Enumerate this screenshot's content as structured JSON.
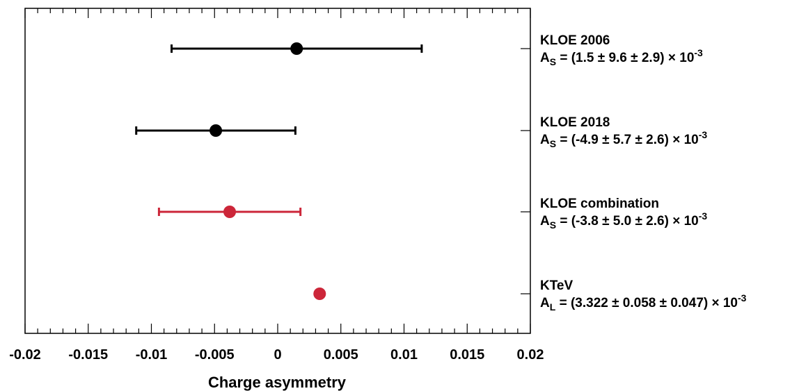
{
  "chart_data": {
    "type": "scatter",
    "orientation": "horizontal-forest",
    "title": "",
    "xlabel": "Charge asymmetry",
    "ylabel": "",
    "xlim": [
      -0.02,
      0.02
    ],
    "x_tick_labels": [
      "-0.02",
      "-0.015",
      "-0.01",
      "-0.005",
      "0",
      "0.005",
      "0.01",
      "0.015",
      "0.02"
    ],
    "x_tick_values": [
      -0.02,
      -0.015,
      -0.01,
      -0.005,
      0,
      0.005,
      0.01,
      0.015,
      0.02
    ],
    "grid": false,
    "legend": "right",
    "points": [
      {
        "label": "KLOE 2006",
        "symbol": "A",
        "subscript": "S",
        "value_text": " = (1.5 ± 9.6 ± 2.9) × 10",
        "exponent": "-3",
        "x": 0.0015,
        "xerr_low": 0.0099,
        "xerr_high": 0.0099,
        "color": "#000000"
      },
      {
        "label": "KLOE 2018",
        "symbol": "A",
        "subscript": "S",
        "value_text": " = (-4.9 ± 5.7 ± 2.6) × 10",
        "exponent": "-3",
        "x": -0.0049,
        "xerr_low": 0.0063,
        "xerr_high": 0.0063,
        "color": "#000000"
      },
      {
        "label": "KLOE combination",
        "symbol": "A",
        "subscript": "S",
        "value_text": " = (-3.8 ± 5.0 ± 2.6) × 10",
        "exponent": "-3",
        "x": -0.0038,
        "xerr_low": 0.0056,
        "xerr_high": 0.0056,
        "color": "#cc2639"
      },
      {
        "label": "KTeV",
        "symbol": "A",
        "subscript": "L",
        "value_text": " = (3.322 ± 0.058 ± 0.047) × 10",
        "exponent": "-3",
        "x": 0.003322,
        "xerr_low": 7.4e-05,
        "xerr_high": 7.4e-05,
        "color": "#cc2639"
      }
    ]
  }
}
